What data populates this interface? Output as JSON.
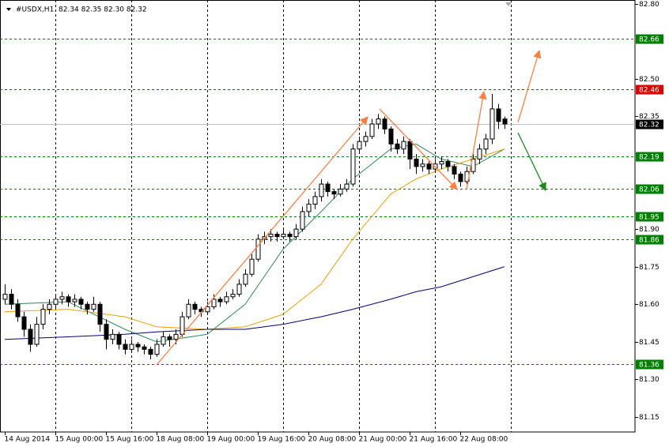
{
  "chart_data": {
    "type": "candlestick",
    "title": "#USDX,H1",
    "ohlc_label": "82.34 82.35 82.30 82.32",
    "xlim": [
      -0.75,
      99.625
    ],
    "ylim": [
      81.09,
      82.815
    ],
    "xticks": [
      {
        "value": 0,
        "label": "14 Aug 2014"
      },
      {
        "value": 8,
        "label": "15 Aug 00:00"
      },
      {
        "value": 16,
        "label": "15 Aug 16:00"
      },
      {
        "value": 24,
        "label": "18 Aug 08:00"
      },
      {
        "value": 32,
        "label": "19 Aug 00:00"
      },
      {
        "value": 40,
        "label": "19 Aug 16:00"
      },
      {
        "value": 48,
        "label": "20 Aug 08:00"
      },
      {
        "value": 56,
        "label": "21 Aug 00:00"
      },
      {
        "value": 64,
        "label": "21 Aug 16:00"
      },
      {
        "value": 72,
        "label": "22 Aug 08:00"
      }
    ],
    "xgrid": [
      8,
      20,
      32,
      44,
      56,
      68,
      80
    ],
    "yticks": [
      {
        "value": 82.8,
        "label": "82.80"
      },
      {
        "value": 82.5,
        "label": "82.50"
      },
      82.35,
      {
        "value": 81.9,
        "label": "81.90"
      },
      81.75,
      {
        "value": 81.6,
        "label": "81.60"
      },
      81.45,
      {
        "value": 81.3,
        "label": "81.30"
      },
      81.15
    ],
    "levels": [
      {
        "value": 82.66,
        "color": "#008000"
      },
      {
        "value": 82.46,
        "color": "#e00000"
      },
      {
        "value": 82.19,
        "color": "#008000"
      },
      {
        "value": 82.06,
        "color": "#008000"
      },
      {
        "value": 81.95,
        "color": "#008000"
      },
      {
        "value": 81.86,
        "color": "#008000"
      },
      {
        "value": 81.36,
        "color": "#008000"
      }
    ],
    "current_price": {
      "value": 82.32,
      "color": "#000000"
    },
    "candles": [
      [
        81.62,
        81.68,
        81.6,
        81.64
      ],
      [
        81.64,
        81.66,
        81.58,
        81.6
      ],
      [
        81.6,
        81.62,
        81.53,
        81.55
      ],
      [
        81.55,
        81.57,
        81.47,
        81.5
      ],
      [
        81.5,
        81.52,
        81.41,
        81.44
      ],
      [
        81.44,
        81.55,
        81.43,
        81.52
      ],
      [
        81.52,
        81.6,
        81.5,
        81.58
      ],
      [
        81.58,
        81.62,
        81.56,
        81.6
      ],
      [
        81.6,
        81.64,
        81.58,
        81.62
      ],
      [
        81.62,
        81.65,
        81.6,
        81.63
      ],
      [
        81.63,
        81.64,
        81.59,
        81.61
      ],
      [
        81.61,
        81.64,
        81.59,
        81.62
      ],
      [
        81.62,
        81.63,
        81.58,
        81.6
      ],
      [
        81.6,
        81.61,
        81.56,
        81.58
      ],
      [
        81.58,
        81.63,
        81.57,
        81.6
      ],
      [
        81.6,
        81.61,
        81.49,
        81.52
      ],
      [
        81.52,
        81.54,
        81.42,
        81.46
      ],
      [
        81.46,
        81.5,
        81.44,
        81.48
      ],
      [
        81.48,
        81.49,
        81.42,
        81.44
      ],
      [
        81.44,
        81.46,
        81.4,
        81.42
      ],
      [
        81.42,
        81.46,
        81.41,
        81.44
      ],
      [
        81.44,
        81.45,
        81.41,
        81.43
      ],
      [
        81.43,
        81.44,
        81.4,
        81.42
      ],
      [
        81.42,
        81.43,
        81.38,
        81.4
      ],
      [
        81.4,
        81.46,
        81.39,
        81.44
      ],
      [
        81.44,
        81.49,
        81.43,
        81.47
      ],
      [
        81.47,
        81.48,
        81.43,
        81.46
      ],
      [
        81.46,
        81.5,
        81.44,
        81.48
      ],
      [
        81.48,
        81.57,
        81.47,
        81.55
      ],
      [
        81.55,
        81.62,
        81.54,
        81.6
      ],
      [
        81.6,
        81.61,
        81.56,
        81.58
      ],
      [
        81.58,
        81.59,
        81.55,
        81.57
      ],
      [
        81.57,
        81.61,
        81.56,
        81.59
      ],
      [
        81.59,
        81.64,
        81.58,
        81.62
      ],
      [
        81.62,
        81.63,
        81.59,
        81.61
      ],
      [
        81.61,
        81.65,
        81.6,
        81.63
      ],
      [
        81.63,
        81.66,
        81.62,
        81.64
      ],
      [
        81.64,
        81.7,
        81.63,
        81.68
      ],
      [
        81.68,
        81.74,
        81.67,
        81.72
      ],
      [
        81.72,
        81.8,
        81.71,
        81.78
      ],
      [
        81.78,
        81.88,
        81.77,
        81.86
      ],
      [
        81.86,
        81.89,
        81.84,
        81.87
      ],
      [
        81.87,
        81.9,
        81.85,
        81.88
      ],
      [
        81.88,
        81.89,
        81.85,
        81.87
      ],
      [
        81.87,
        81.9,
        81.86,
        81.88
      ],
      [
        81.88,
        81.89,
        81.85,
        81.87
      ],
      [
        81.87,
        81.92,
        81.86,
        81.9
      ],
      [
        81.9,
        81.99,
        81.89,
        81.97
      ],
      [
        81.97,
        82.02,
        81.95,
        82.0
      ],
      [
        82.0,
        82.05,
        81.98,
        82.03
      ],
      [
        82.03,
        82.1,
        82.01,
        82.08
      ],
      [
        82.08,
        82.09,
        82.03,
        82.05
      ],
      [
        82.05,
        82.06,
        82.02,
        82.04
      ],
      [
        82.04,
        82.08,
        82.03,
        82.06
      ],
      [
        82.06,
        82.1,
        82.05,
        82.08
      ],
      [
        82.08,
        82.24,
        82.07,
        82.22
      ],
      [
        82.22,
        82.27,
        82.2,
        82.25
      ],
      [
        82.25,
        82.29,
        82.23,
        82.27
      ],
      [
        82.27,
        82.34,
        82.26,
        82.32
      ],
      [
        82.32,
        82.36,
        82.3,
        82.34
      ],
      [
        82.34,
        82.35,
        82.28,
        82.3
      ],
      [
        82.3,
        82.31,
        82.21,
        82.24
      ],
      [
        82.24,
        82.26,
        82.2,
        82.22
      ],
      [
        82.22,
        82.27,
        82.2,
        82.25
      ],
      [
        82.25,
        82.26,
        82.14,
        82.18
      ],
      [
        82.18,
        82.2,
        82.12,
        82.15
      ],
      [
        82.15,
        82.18,
        82.13,
        82.16
      ],
      [
        82.16,
        82.17,
        82.12,
        82.14
      ],
      [
        82.14,
        82.18,
        82.13,
        82.16
      ],
      [
        82.16,
        82.19,
        82.14,
        82.17
      ],
      [
        82.17,
        82.18,
        82.13,
        82.15
      ],
      [
        82.15,
        82.16,
        82.1,
        82.12
      ],
      [
        82.12,
        82.13,
        82.07,
        82.09
      ],
      [
        82.09,
        82.15,
        82.08,
        82.13
      ],
      [
        82.13,
        82.2,
        82.12,
        82.18
      ],
      [
        82.18,
        82.24,
        82.16,
        82.22
      ],
      [
        82.22,
        82.28,
        82.2,
        82.26
      ],
      [
        82.26,
        82.44,
        82.24,
        82.38
      ],
      [
        82.38,
        82.4,
        82.3,
        82.33
      ],
      [
        82.34,
        82.35,
        82.3,
        82.32
      ]
    ],
    "ma_x": [
      0,
      10,
      19,
      24,
      32,
      38,
      44,
      50,
      55,
      61,
      65,
      69,
      74,
      79
    ],
    "series": [
      {
        "color": "#2e8b57",
        "values": [
          81.6,
          81.61,
          81.5,
          81.45,
          81.48,
          81.6,
          81.82,
          81.97,
          82.1,
          82.22,
          82.24,
          82.18,
          82.15,
          82.22
        ]
      },
      {
        "color": "#f0a000",
        "values": [
          81.57,
          81.58,
          81.55,
          81.51,
          81.5,
          81.51,
          81.56,
          81.68,
          81.86,
          82.04,
          82.1,
          82.14,
          82.18,
          82.22
        ]
      },
      {
        "color": "#000080",
        "values": [
          81.46,
          81.47,
          81.48,
          81.49,
          81.5,
          81.5,
          81.52,
          81.55,
          81.58,
          81.62,
          81.65,
          81.67,
          81.71,
          81.75
        ]
      }
    ]
  }
}
